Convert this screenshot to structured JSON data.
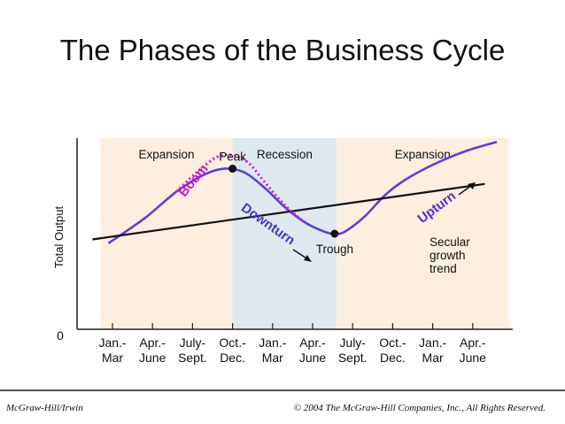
{
  "slide": {
    "title": "The Phases of the Business Cycle",
    "footer_left": "McGraw-Hill/Irwin",
    "footer_right": "© 2004 The McGraw-Hill Companies, Inc., All Rights Reserved."
  },
  "chart_data": {
    "type": "line",
    "title": "The Phases of the Business Cycle",
    "ylabel": "Total Output",
    "y_zero_label": "0",
    "xlabel": "",
    "categories": [
      [
        "Jan.-",
        "Mar"
      ],
      [
        "Apr.-",
        "June"
      ],
      [
        "July-",
        "Sept."
      ],
      [
        "Oct.-",
        "Dec."
      ],
      [
        "Jan.-",
        "Mar"
      ],
      [
        "Apr.-",
        "June"
      ],
      [
        "July-",
        "Sept."
      ],
      [
        "Oct.-",
        "Dec."
      ],
      [
        "Jan.-",
        "Mar"
      ],
      [
        "Apr.-",
        "June"
      ]
    ],
    "ylim": [
      0,
      100
    ],
    "phases": [
      {
        "label": "Expansion",
        "from": -0.3,
        "to": 3.0,
        "color": "#fdeee0"
      },
      {
        "label": "Recession",
        "from": 3.0,
        "to": 5.6,
        "color": "#dfe8ee"
      },
      {
        "label": "Expansion",
        "from": 5.6,
        "to": 9.9,
        "color": "#fdeee0"
      }
    ],
    "series": [
      {
        "role": "cycle",
        "color": "#5b3fd6",
        "x": [
          -0.1,
          0.8,
          1.6,
          2.3,
          2.8,
          3.3,
          3.8,
          4.3,
          4.8,
          5.3,
          5.55,
          5.8,
          6.3,
          6.8,
          7.3,
          8.0,
          8.8,
          9.6
        ],
        "y": [
          45,
          58,
          72,
          81,
          84,
          82,
          74,
          64,
          56,
          51,
          50,
          51,
          59,
          70,
          78,
          86,
          93,
          98
        ]
      },
      {
        "role": "trend",
        "color": "#111111",
        "x": [
          -0.5,
          9.3
        ],
        "y": [
          47,
          76
        ]
      },
      {
        "role": "boom",
        "color": "#d21ad2",
        "x": [
          1.6,
          2.1,
          2.6,
          3.0,
          3.4,
          3.8,
          4.3,
          4.8
        ],
        "y": [
          72,
          82,
          90,
          91,
          87,
          77,
          65,
          56
        ]
      }
    ],
    "annotations": {
      "peak": {
        "label": "Peak",
        "x": 3.0,
        "y": 84
      },
      "trough": {
        "label": "Trough",
        "x": 5.55,
        "y": 50
      },
      "boom": "Boom",
      "downturn": "Downturn",
      "upturn": "Upturn",
      "secular": [
        "Secular",
        "growth",
        "trend"
      ]
    }
  }
}
